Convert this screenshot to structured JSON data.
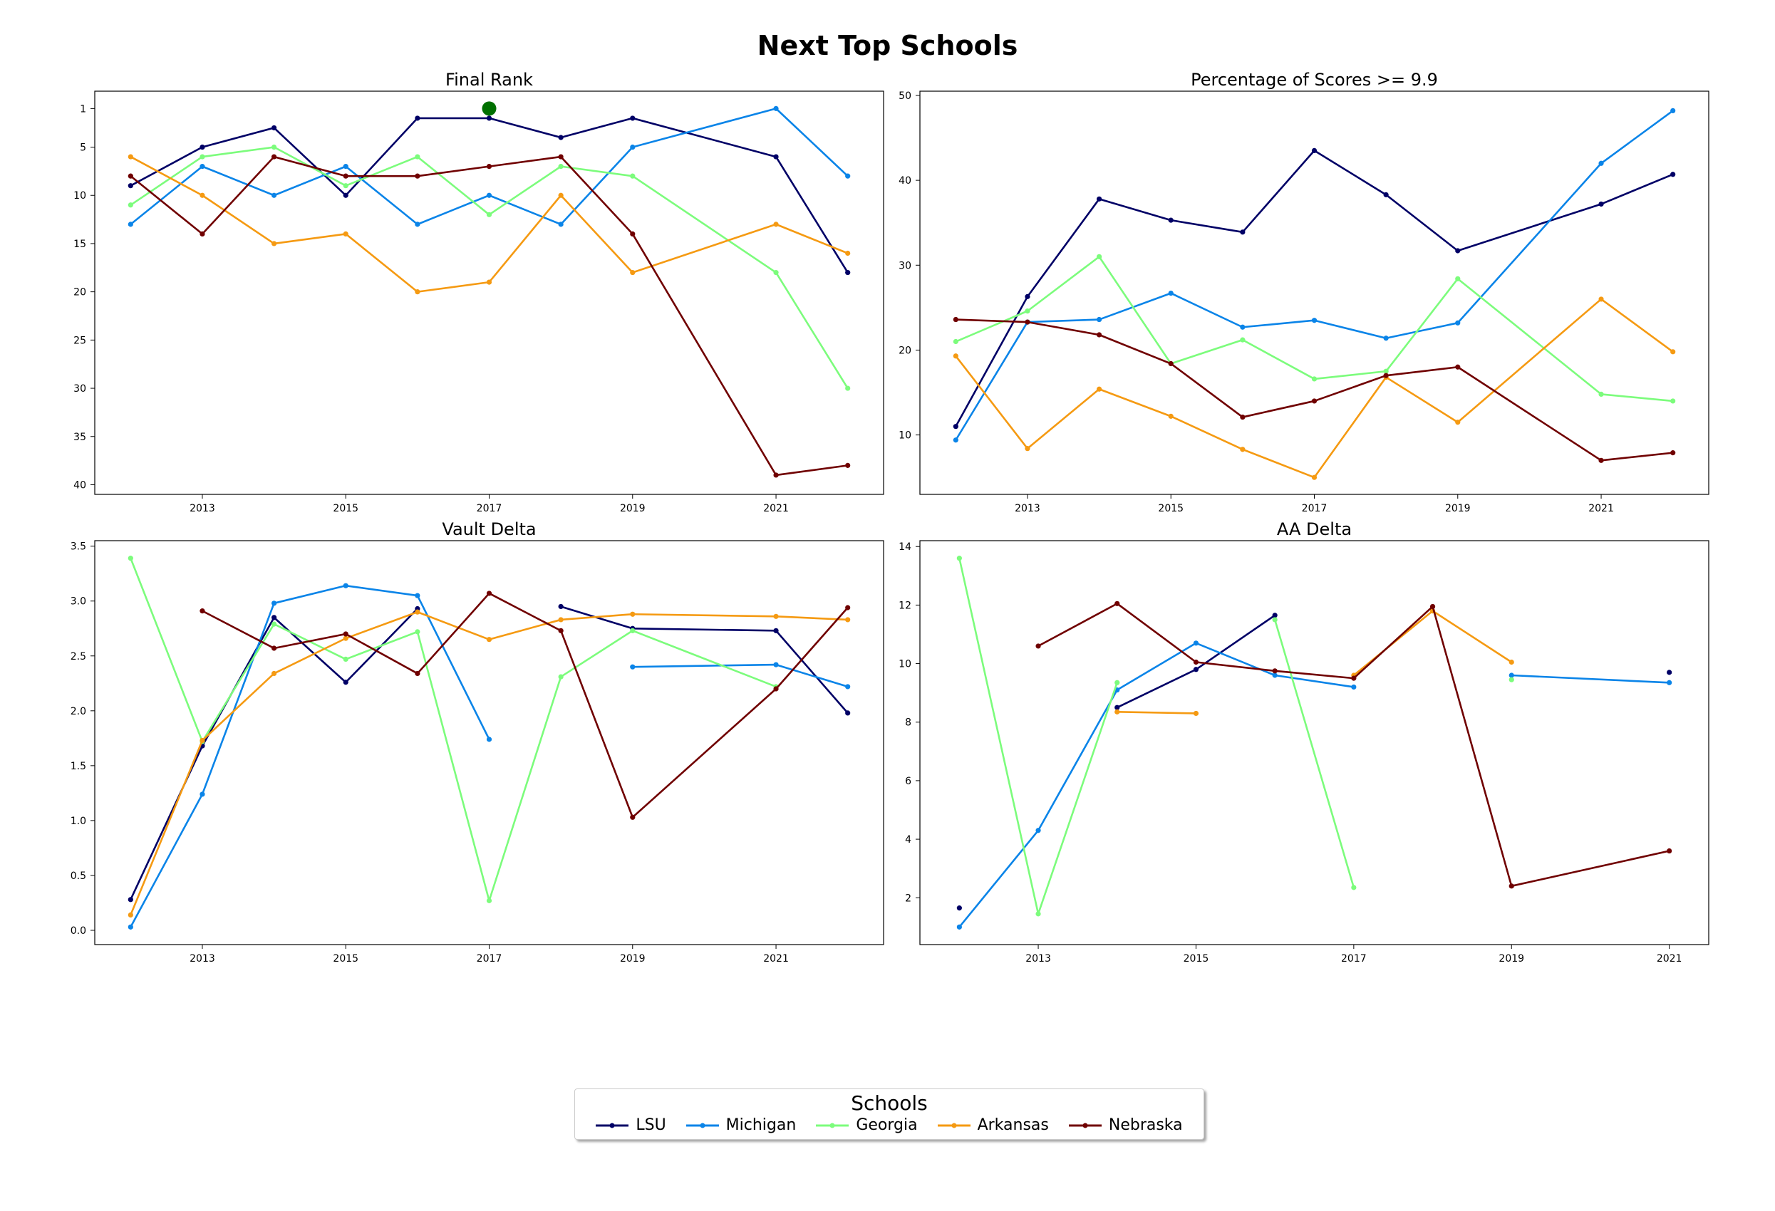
{
  "figure": {
    "title": "Next Top Schools"
  },
  "legend": {
    "title": "Schools",
    "entries": [
      {
        "name": "LSU",
        "color": "#000066"
      },
      {
        "name": "Michigan",
        "color": "#0A84E8"
      },
      {
        "name": "Georgia",
        "color": "#7CFC7C"
      },
      {
        "name": "Arkansas",
        "color": "#F59A12"
      },
      {
        "name": "Nebraska",
        "color": "#700000"
      }
    ]
  },
  "chart_data": [
    {
      "type": "line",
      "title": "Final Rank",
      "xlabel": "",
      "ylabel": "",
      "x": [
        2012,
        2013,
        2014,
        2015,
        2016,
        2017,
        2018,
        2019,
        2021,
        2022
      ],
      "xlim": [
        2011.5,
        2022.5
      ],
      "xticks": [
        2013,
        2015,
        2017,
        2019,
        2021
      ],
      "ylim": [
        41,
        -0.8
      ],
      "yinverted": true,
      "yticks": [
        1,
        5,
        10,
        15,
        20,
        25,
        30,
        35,
        40
      ],
      "grid": false,
      "series": [
        {
          "name": "LSU",
          "values": [
            9,
            5,
            3,
            10,
            2,
            2,
            4,
            2,
            6,
            18
          ]
        },
        {
          "name": "Michigan",
          "values": [
            13,
            7,
            10,
            7,
            13,
            10,
            13,
            5,
            1,
            8
          ]
        },
        {
          "name": "Georgia",
          "values": [
            11,
            6,
            5,
            9,
            6,
            12,
            7,
            8,
            18,
            30
          ]
        },
        {
          "name": "Arkansas",
          "values": [
            6,
            10,
            15,
            14,
            20,
            19,
            10,
            18,
            13,
            16
          ]
        },
        {
          "name": "Nebraska",
          "values": [
            8,
            14,
            6,
            8,
            8,
            7,
            6,
            14,
            39,
            38
          ]
        }
      ],
      "highlight": {
        "x": 2017,
        "y": 1,
        "color": "#007000"
      }
    },
    {
      "type": "line",
      "title": "Percentage of Scores >= 9.9",
      "xlabel": "",
      "ylabel": "",
      "x": [
        2012,
        2013,
        2014,
        2015,
        2016,
        2017,
        2018,
        2019,
        2021,
        2022
      ],
      "xlim": [
        2011.5,
        2022.5
      ],
      "xticks": [
        2013,
        2015,
        2017,
        2019,
        2021
      ],
      "ylim": [
        3,
        50.5
      ],
      "yticks": [
        10,
        20,
        30,
        40,
        50
      ],
      "grid": false,
      "series": [
        {
          "name": "LSU",
          "values": [
            11.0,
            26.3,
            37.8,
            35.3,
            33.9,
            43.5,
            38.3,
            31.7,
            37.2,
            40.7
          ]
        },
        {
          "name": "Michigan",
          "values": [
            9.4,
            23.3,
            23.6,
            26.7,
            22.7,
            23.5,
            21.4,
            23.2,
            42.0,
            48.2
          ]
        },
        {
          "name": "Georgia",
          "values": [
            21.0,
            24.6,
            31.0,
            18.4,
            21.2,
            16.6,
            17.5,
            28.4,
            14.8,
            14.0
          ]
        },
        {
          "name": "Arkansas",
          "values": [
            19.3,
            8.4,
            15.4,
            12.2,
            8.3,
            5.0,
            16.8,
            11.5,
            26.0,
            19.8
          ]
        },
        {
          "name": "Nebraska",
          "values": [
            23.6,
            23.3,
            21.8,
            18.4,
            12.1,
            14.0,
            17.0,
            18.0,
            7.0,
            7.9
          ]
        }
      ]
    },
    {
      "type": "line",
      "title": "Vault Delta",
      "xlabel": "",
      "ylabel": "",
      "x": [
        2012,
        2013,
        2014,
        2015,
        2016,
        2017,
        2018,
        2019,
        2021,
        2022
      ],
      "xlim": [
        2011.5,
        2022.5
      ],
      "xticks": [
        2013,
        2015,
        2017,
        2019,
        2021
      ],
      "ylim": [
        -0.13,
        3.55
      ],
      "yticks": [
        0.0,
        0.5,
        1.0,
        1.5,
        2.0,
        2.5,
        3.0,
        3.5
      ],
      "grid": false,
      "series": [
        {
          "name": "LSU",
          "values": [
            0.28,
            1.68,
            2.85,
            2.26,
            2.93,
            null,
            2.95,
            2.75,
            2.73,
            1.98
          ]
        },
        {
          "name": "Michigan",
          "values": [
            0.03,
            1.24,
            2.98,
            3.14,
            3.05,
            1.74,
            null,
            2.4,
            2.42,
            2.22
          ]
        },
        {
          "name": "Georgia",
          "values": [
            3.39,
            1.72,
            2.79,
            2.47,
            2.72,
            0.27,
            2.31,
            2.73,
            2.22,
            null
          ]
        },
        {
          "name": "Arkansas",
          "values": [
            0.14,
            1.73,
            2.34,
            2.66,
            2.9,
            2.65,
            2.83,
            2.88,
            2.86,
            2.83
          ]
        },
        {
          "name": "Nebraska",
          "values": [
            null,
            2.91,
            2.57,
            2.7,
            2.34,
            3.07,
            2.73,
            1.03,
            2.2,
            2.94
          ]
        }
      ]
    },
    {
      "type": "line",
      "title": "AA Delta",
      "xlabel": "",
      "ylabel": "",
      "x": [
        2012,
        2013,
        2014,
        2015,
        2016,
        2017,
        2018,
        2019,
        2021
      ],
      "xlim": [
        2011.5,
        2021.5
      ],
      "xticks": [
        2013,
        2015,
        2017,
        2019,
        2021
      ],
      "ylim": [
        0.4,
        14.2
      ],
      "yticks": [
        2,
        4,
        6,
        8,
        10,
        12,
        14
      ],
      "grid": false,
      "series": [
        {
          "name": "LSU",
          "values": [
            1.65,
            null,
            8.5,
            9.8,
            11.65,
            null,
            null,
            null,
            9.7
          ]
        },
        {
          "name": "Michigan",
          "values": [
            1.0,
            4.3,
            9.1,
            10.7,
            9.6,
            9.2,
            null,
            9.6,
            9.35
          ]
        },
        {
          "name": "Georgia",
          "values": [
            13.6,
            1.45,
            9.35,
            null,
            11.5,
            2.35,
            null,
            9.45,
            null
          ]
        },
        {
          "name": "Arkansas",
          "values": [
            null,
            null,
            8.35,
            8.3,
            null,
            9.6,
            11.8,
            10.05,
            null
          ]
        },
        {
          "name": "Nebraska",
          "values": [
            null,
            10.6,
            12.05,
            10.05,
            9.75,
            9.5,
            11.95,
            2.4,
            3.6
          ]
        }
      ]
    }
  ]
}
